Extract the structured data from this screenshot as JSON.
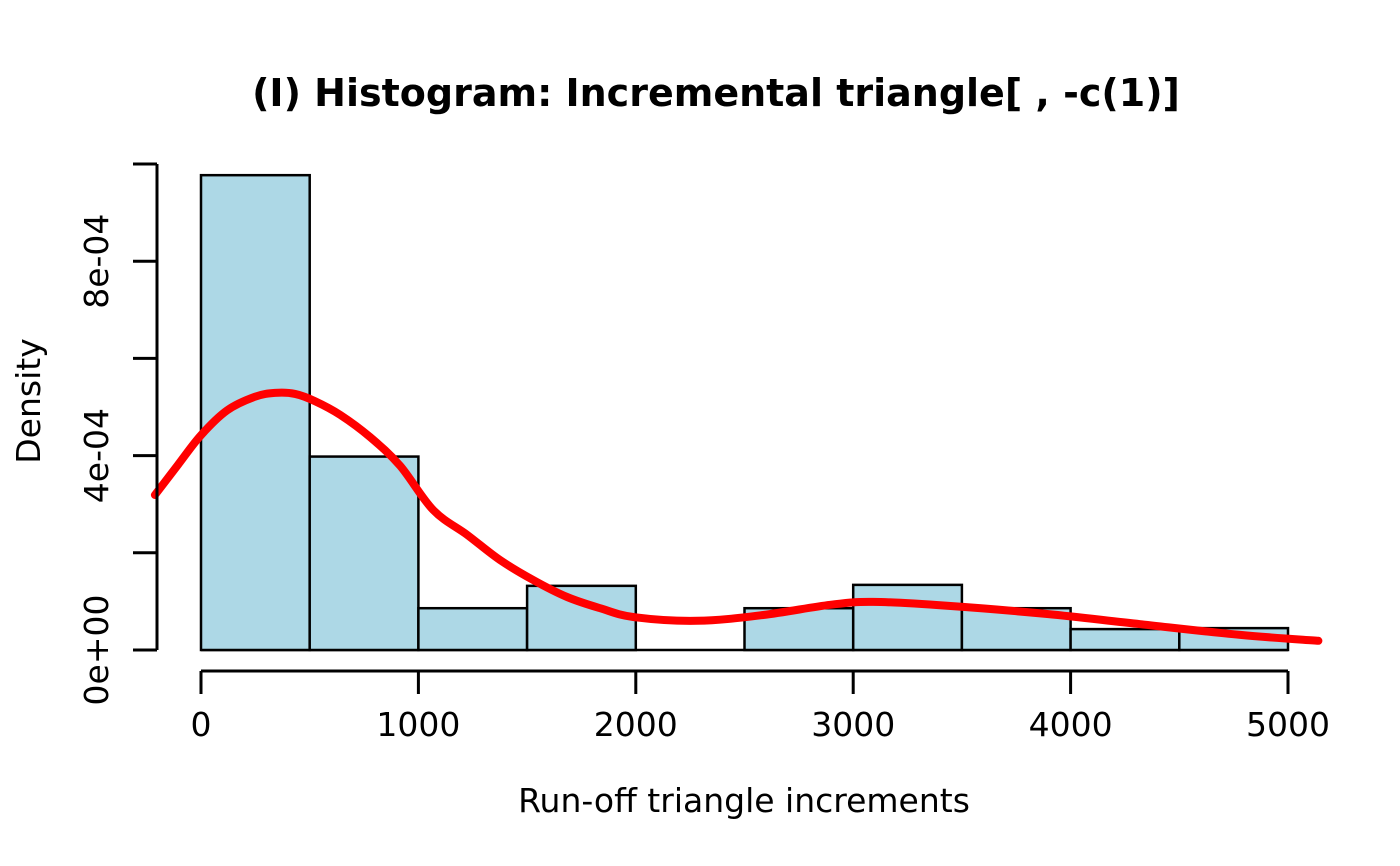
{
  "chart_data": {
    "type": "bar",
    "subtype": "histogram-with-density-overlay",
    "title": "(I) Histogram: Incremental triangle[ , -c(1)]",
    "xlabel": "Run-off triangle increments",
    "ylabel": "Density",
    "xlim": [
      -250,
      5250
    ],
    "ylim": [
      0,
      0.001
    ],
    "grid": false,
    "x_ticks": [
      {
        "value": 0,
        "label": "0"
      },
      {
        "value": 1000,
        "label": "1000"
      },
      {
        "value": 2000,
        "label": "2000"
      },
      {
        "value": 3000,
        "label": "3000"
      },
      {
        "value": 4000,
        "label": "4000"
      },
      {
        "value": 5000,
        "label": "5000"
      }
    ],
    "y_ticks": [
      {
        "value": 0.0,
        "label": "0e+00"
      },
      {
        "value": 0.0002,
        "label": ""
      },
      {
        "value": 0.0004,
        "label": "4e-04"
      },
      {
        "value": 0.0006,
        "label": ""
      },
      {
        "value": 0.0008,
        "label": "8e-04"
      },
      {
        "value": 0.001,
        "label": ""
      }
    ],
    "histogram": {
      "bin_width": 500,
      "bin_edges": [
        0,
        500,
        1000,
        1500,
        2000,
        2500,
        3000,
        3500,
        4000,
        4500,
        5000
      ],
      "densities": [
        0.000977,
        0.000398,
        8.6e-05,
        0.000132,
        0,
        8.6e-05,
        0.000134,
        8.6e-05,
        4.3e-05,
        4.5e-05
      ],
      "fill": "#ADD8E6",
      "stroke": "#000000"
    },
    "density_curve": {
      "color": "#FF0000",
      "stroke_width": 8,
      "points": [
        [
          -212,
          0.000319
        ],
        [
          -106,
          0.000381
        ],
        [
          0,
          0.000442
        ],
        [
          120,
          0.000493
        ],
        [
          248,
          0.000521
        ],
        [
          340,
          0.000529
        ],
        [
          433,
          0.000527
        ],
        [
          525,
          0.000512
        ],
        [
          640,
          0.000484
        ],
        [
          778,
          0.000438
        ],
        [
          916,
          0.000379
        ],
        [
          1068,
          0.000288
        ],
        [
          1224,
          0.000237
        ],
        [
          1376,
          0.000185
        ],
        [
          1528,
          0.000144
        ],
        [
          1684,
          0.000109
        ],
        [
          1836,
          8.6e-05
        ],
        [
          1988,
          6.8e-05
        ],
        [
          2282,
          6e-05
        ],
        [
          2586,
          7.2e-05
        ],
        [
          2894,
          9.3e-05
        ],
        [
          3092,
          9.9e-05
        ],
        [
          3432,
          9.1e-05
        ],
        [
          3893,
          7.4e-05
        ],
        [
          4321,
          5.3e-05
        ],
        [
          4781,
          3.1e-05
        ],
        [
          5140,
          1.9e-05
        ]
      ]
    }
  }
}
